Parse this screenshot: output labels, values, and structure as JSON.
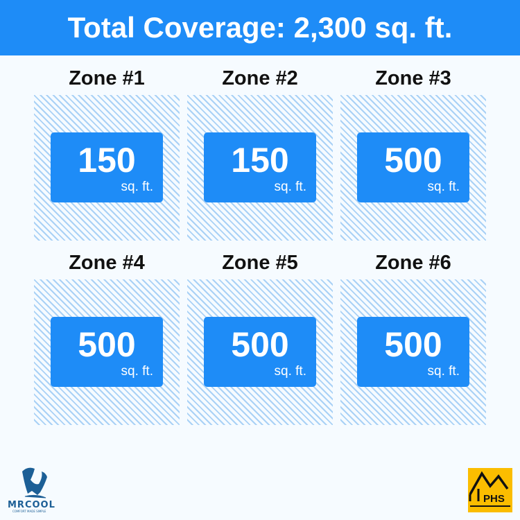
{
  "header": {
    "title": "Total Coverage: 2,300 sq. ft."
  },
  "zones": [
    {
      "label": "Zone #1",
      "value": "150",
      "unit": "sq. ft."
    },
    {
      "label": "Zone #2",
      "value": "150",
      "unit": "sq. ft."
    },
    {
      "label": "Zone #3",
      "value": "500",
      "unit": "sq. ft."
    },
    {
      "label": "Zone #4",
      "value": "500",
      "unit": "sq. ft."
    },
    {
      "label": "Zone #5",
      "value": "500",
      "unit": "sq. ft."
    },
    {
      "label": "Zone #6",
      "value": "500",
      "unit": "sq. ft."
    }
  ],
  "logos": {
    "mrcool": {
      "name": "MRCOOL",
      "tagline": "COMFORT MADE SIMPLE"
    },
    "phs": {
      "name": "PHS"
    }
  },
  "colors": {
    "accent": "#1e8cf7",
    "hatch": "#a9d1f6",
    "background": "#f6fbff",
    "phs": "#fbbd00"
  }
}
